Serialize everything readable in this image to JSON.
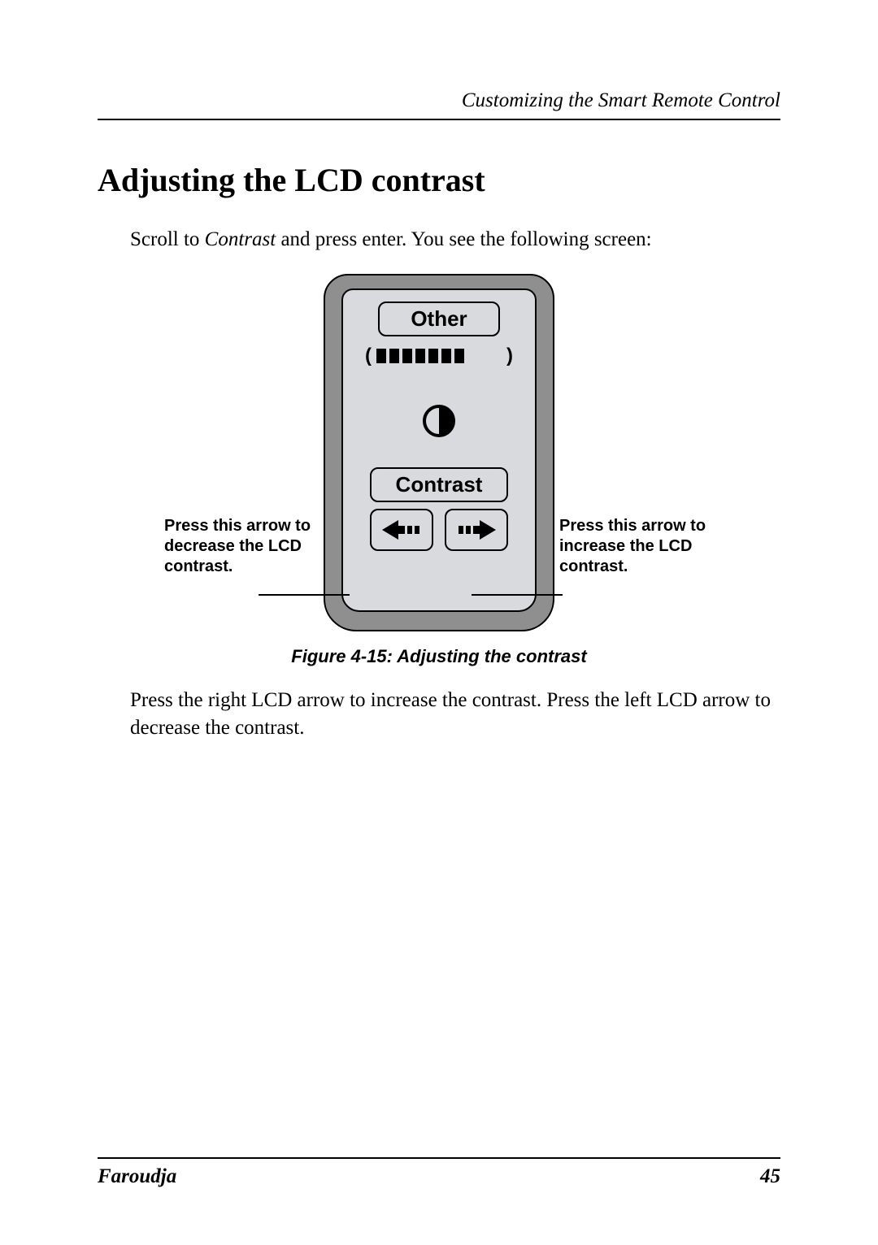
{
  "header": {
    "running_title": "Customizing the Smart Remote Control"
  },
  "section": {
    "title": "Adjusting the LCD contrast"
  },
  "intro": {
    "pre": "Scroll to ",
    "keyword": "Contrast",
    "post": " and press enter.  You see the following screen:"
  },
  "remote": {
    "top_label": "Other",
    "mid_label": "Contrast",
    "level_filled": 7,
    "level_total": 10,
    "colors": {
      "body": "#8f8f8f",
      "screen": "#d9dadd",
      "ink": "#000000"
    }
  },
  "callouts": {
    "left": "Press this arrow to decrease the LCD contrast.",
    "right": "Press this arrow to increase the LCD contrast."
  },
  "figure": {
    "caption": "Figure 4-15: Adjusting the contrast"
  },
  "body": {
    "para": "Press the right LCD arrow to increase the contrast.  Press the left LCD arrow to decrease the contrast."
  },
  "footer": {
    "brand": "Faroudja",
    "page": "45"
  }
}
